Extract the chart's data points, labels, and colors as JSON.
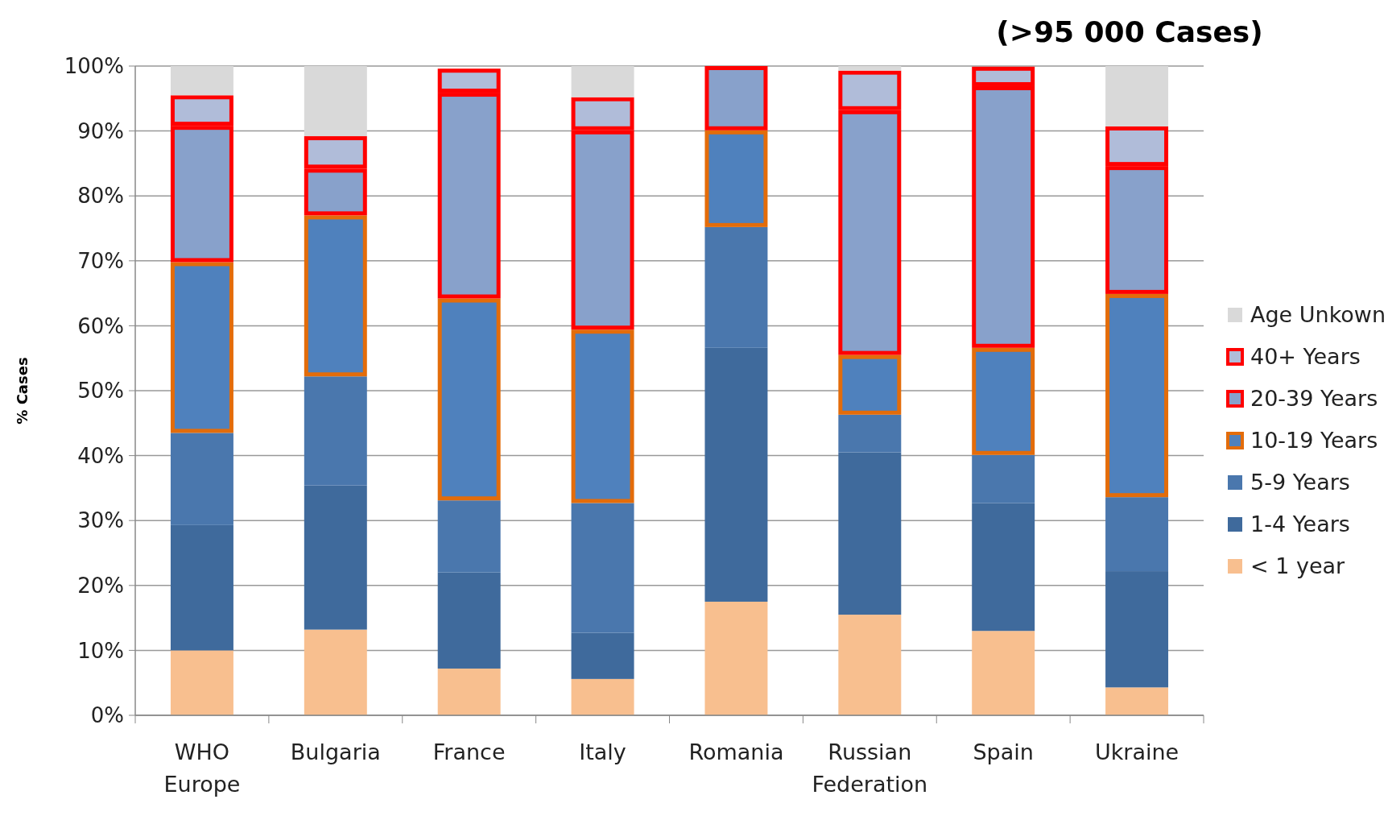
{
  "chart_data": {
    "type": "bar",
    "stacked": true,
    "title": "(>95 000 Cases)",
    "ylabel": "% Cases",
    "categories": [
      "WHO Europe",
      "Bulgaria",
      "France",
      "Italy",
      "Romania",
      "Russian Federation",
      "Spain",
      "Ukraine"
    ],
    "series": [
      {
        "name": "< 1 year",
        "color": "#f8bf8f",
        "values": [
          10,
          13.2,
          7.2,
          5.6,
          17.5,
          15.5,
          13,
          4.3
        ]
      },
      {
        "name": "1-4 Years",
        "color": "#3f6a9c",
        "values": [
          19.3,
          22.2,
          14.8,
          7.1,
          39.1,
          25,
          19.7,
          17.9
        ]
      },
      {
        "name": "5-9 Years",
        "color": "#4a77ad",
        "values": [
          14.2,
          16.8,
          11.1,
          20,
          18.6,
          5.8,
          7.4,
          11.4
        ]
      },
      {
        "name": "10-19 Years",
        "color": "#4f81bd",
        "values": [
          26.3,
          24.8,
          31.1,
          26.7,
          14.9,
          9.2,
          16.5,
          31.3
        ]
      },
      {
        "name": "20-39 Years",
        "color": "#88a1cb",
        "values": [
          21,
          7.2,
          31.7,
          30.7,
          9.9,
          37.7,
          40.3,
          19.7
        ]
      },
      {
        "name": "40+ Years",
        "color": "#b0bcd9",
        "values": [
          4.7,
          5,
          3.7,
          5.1,
          null,
          6.1,
          3,
          6.1
        ]
      },
      {
        "name": "Age Unkown",
        "color": "#d9d9d9",
        "values": [
          4.5,
          10.8,
          null,
          4.8,
          null,
          0.7,
          null,
          9.3
        ]
      }
    ],
    "ylim": [
      0,
      100
    ],
    "yticks": [
      {
        "value": 0,
        "label": "0%"
      },
      {
        "value": 10,
        "label": "10%"
      },
      {
        "value": 20,
        "label": "20%"
      },
      {
        "value": 30,
        "label": "30%"
      },
      {
        "value": 40,
        "label": "40%"
      },
      {
        "value": 50,
        "label": "50%"
      },
      {
        "value": 60,
        "label": "60%"
      },
      {
        "value": 70,
        "label": "70%"
      },
      {
        "value": 80,
        "label": "80%"
      },
      {
        "value": 90,
        "label": "90%"
      },
      {
        "value": 100,
        "label": "100%"
      }
    ],
    "grid": "y",
    "legend": "right"
  }
}
